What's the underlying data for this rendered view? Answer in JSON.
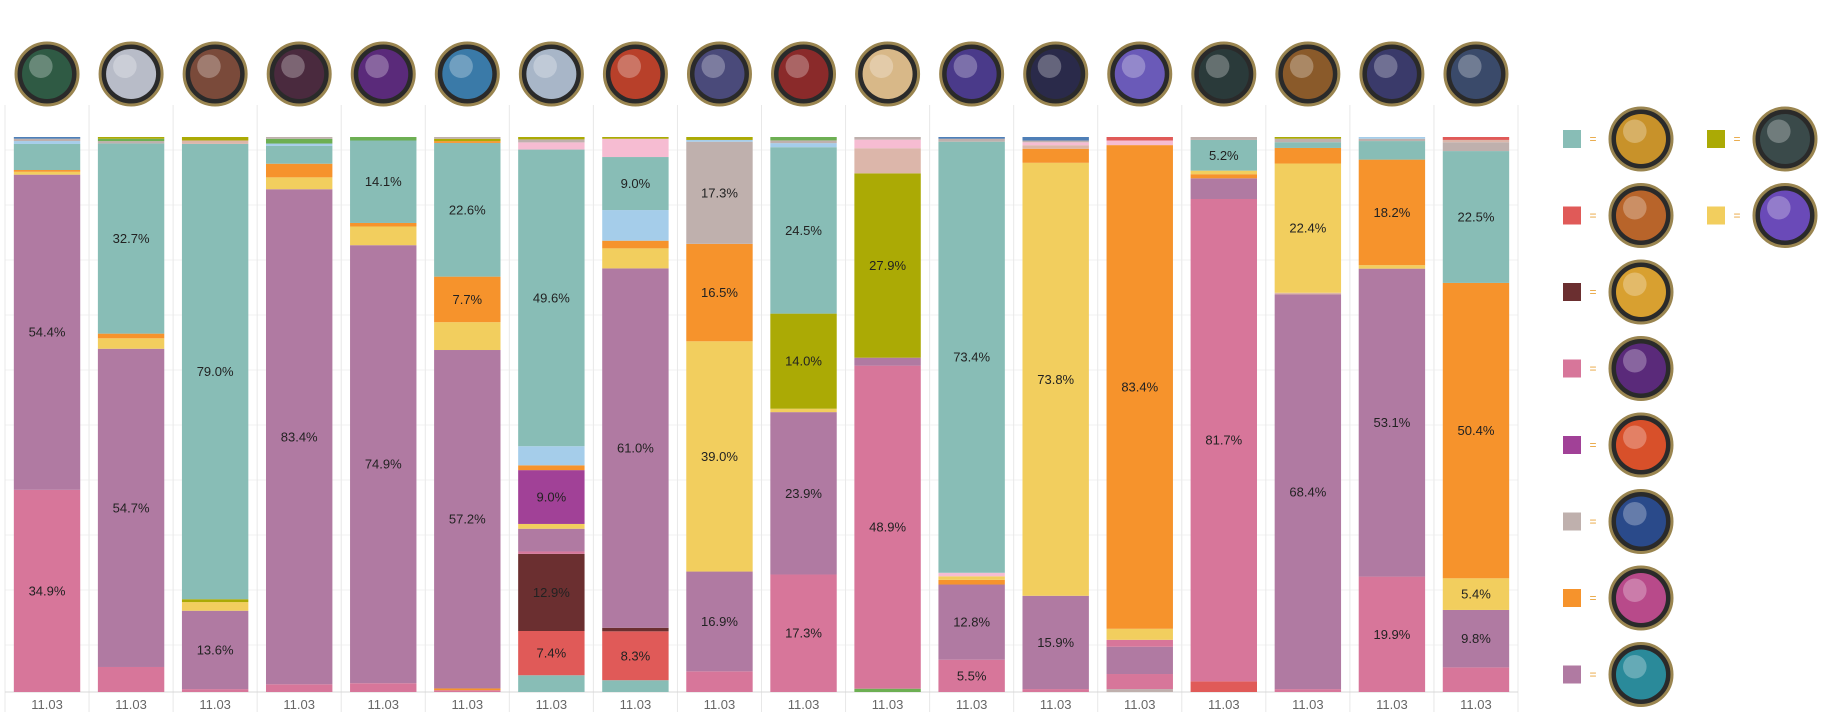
{
  "colors": {
    "teal": "#88bdb6",
    "red": "#e05a58",
    "maroon": "#6b2f30",
    "pink": "#d7769a",
    "magenta": "#a14197",
    "greige": "#bfb0ad",
    "orange": "#f6932c",
    "mauve": "#b07aa2",
    "olive": "#abaa05",
    "yellow": "#f2ce5e",
    "lightblue": "#a5cdea",
    "lightpink": "#f6bcd2",
    "tan": "#dcb6aa",
    "green": "#6daf53",
    "steelblue": "#4f7fb7"
  },
  "legend": [
    {
      "color": "teal",
      "icon": "gold-armored-champion-icon"
    },
    {
      "color": "red",
      "icon": "fiery-emblem-icon"
    },
    {
      "color": "maroon",
      "icon": "sun-medallion-icon"
    },
    {
      "color": "pink",
      "icon": "purple-orb-icon"
    },
    {
      "color": "magenta",
      "icon": "red-burst-icon"
    },
    {
      "color": "greige",
      "icon": "blue-crest-icon"
    },
    {
      "color": "orange",
      "icon": "pink-champion-icon"
    },
    {
      "color": "mauve",
      "icon": "cyan-champion-icon"
    },
    {
      "color": "olive",
      "icon": "dark-knight-icon"
    },
    {
      "color": "yellow",
      "icon": "purple-swirl-icon"
    }
  ],
  "legend_eq": "=",
  "chart_data": {
    "type": "bar",
    "stacked": true,
    "categories": [
      "11.03",
      "11.03",
      "11.03",
      "11.03",
      "11.03",
      "11.03",
      "11.03",
      "11.03",
      "11.03",
      "11.03",
      "11.03",
      "11.03",
      "11.03",
      "11.03",
      "11.03",
      "11.03",
      "11.03",
      "11.03"
    ],
    "champion_icons": [
      "akali-icon",
      "diana-icon",
      "champion-icon-3",
      "champion-icon-4",
      "champion-icon-5",
      "fizz-icon",
      "champion-icon-7",
      "gragas-icon",
      "champion-icon-9",
      "katarina-icon",
      "champion-icon-11",
      "champion-icon-12",
      "leblanc-icon",
      "lux-icon",
      "champion-icon-15",
      "qiyana-icon",
      "champion-icon-17",
      "champion-icon-18"
    ],
    "bars": [
      {
        "scale": 1.0,
        "segments": [
          {
            "c": "pink",
            "v": 34.9,
            "label": "34.9%"
          },
          {
            "c": "mauve",
            "v": 54.4,
            "label": "54.4%"
          },
          {
            "c": "yellow",
            "v": 0.5
          },
          {
            "c": "orange",
            "v": 0.3
          },
          {
            "c": "teal",
            "v": 4.5
          },
          {
            "c": "lightblue",
            "v": 0.5
          },
          {
            "c": "greige",
            "v": 0.4
          },
          {
            "c": "steelblue",
            "v": 0.3
          }
        ]
      },
      {
        "scale": 1.0,
        "segments": [
          {
            "c": "pink",
            "v": 4.3
          },
          {
            "c": "mauve",
            "v": 54.7,
            "label": "54.7%"
          },
          {
            "c": "yellow",
            "v": 1.8
          },
          {
            "c": "orange",
            "v": 0.8
          },
          {
            "c": "teal",
            "v": 32.7,
            "label": "32.7%"
          },
          {
            "c": "greige",
            "v": 0.4
          },
          {
            "c": "green",
            "v": 0.4
          },
          {
            "c": "olive",
            "v": 0.3
          }
        ]
      },
      {
        "scale": 1.0,
        "segments": [
          {
            "c": "pink",
            "v": 0.5
          },
          {
            "c": "mauve",
            "v": 13.6,
            "label": "13.6%"
          },
          {
            "c": "yellow",
            "v": 1.5
          },
          {
            "c": "olive",
            "v": 0.5
          },
          {
            "c": "teal",
            "v": 79.0,
            "label": "79.0%"
          },
          {
            "c": "tan",
            "v": 0.6
          },
          {
            "c": "olive",
            "v": 0.6
          }
        ]
      },
      {
        "scale": 1.0,
        "segments": [
          {
            "c": "pink",
            "v": 1.3
          },
          {
            "c": "mauve",
            "v": 83.4,
            "label": "83.4%"
          },
          {
            "c": "yellow",
            "v": 2.0
          },
          {
            "c": "orange",
            "v": 2.3
          },
          {
            "c": "teal",
            "v": 3.0
          },
          {
            "c": "lightblue",
            "v": 0.4
          },
          {
            "c": "green",
            "v": 0.8
          },
          {
            "c": "greige",
            "v": 0.3
          }
        ]
      },
      {
        "scale": 1.0,
        "segments": [
          {
            "c": "pink",
            "v": 1.5
          },
          {
            "c": "mauve",
            "v": 74.9,
            "label": "74.9%"
          },
          {
            "c": "yellow",
            "v": 3.2
          },
          {
            "c": "orange",
            "v": 0.6
          },
          {
            "c": "teal",
            "v": 14.1,
            "label": "14.1%"
          },
          {
            "c": "green",
            "v": 0.6
          }
        ]
      },
      {
        "scale": 1.0,
        "segments": [
          {
            "c": "pink",
            "v": 0.3
          },
          {
            "c": "orange",
            "v": 0.3
          },
          {
            "c": "mauve",
            "v": 57.2,
            "label": "57.2%"
          },
          {
            "c": "yellow",
            "v": 4.7
          },
          {
            "c": "orange",
            "v": 7.7,
            "label": "7.7%"
          },
          {
            "c": "teal",
            "v": 22.6,
            "label": "22.6%"
          },
          {
            "c": "orange",
            "v": 0.3
          },
          {
            "c": "olive",
            "v": 0.4
          },
          {
            "c": "greige",
            "v": 0.3
          }
        ]
      },
      {
        "scale": 1.0,
        "segments": [
          {
            "c": "teal",
            "v": 2.8
          },
          {
            "c": "red",
            "v": 7.4,
            "label": "7.4%"
          },
          {
            "c": "maroon",
            "v": 12.9,
            "label": "12.9%"
          },
          {
            "c": "pink",
            "v": 0.4
          },
          {
            "c": "mauve",
            "v": 3.8
          },
          {
            "c": "yellow",
            "v": 0.8
          },
          {
            "c": "magenta",
            "v": 9.0,
            "label": "9.0%"
          },
          {
            "c": "orange",
            "v": 0.8
          },
          {
            "c": "lightblue",
            "v": 3.2
          },
          {
            "c": "teal",
            "v": 49.6,
            "label": "49.6%"
          },
          {
            "c": "lightpink",
            "v": 1.2
          },
          {
            "c": "greige",
            "v": 0.5
          },
          {
            "c": "olive",
            "v": 0.4
          }
        ]
      },
      {
        "scale": 1.0,
        "segments": [
          {
            "c": "teal",
            "v": 2.0
          },
          {
            "c": "red",
            "v": 8.3,
            "label": "8.3%"
          },
          {
            "c": "maroon",
            "v": 0.6
          },
          {
            "c": "mauve",
            "v": 61.0,
            "label": "61.0%"
          },
          {
            "c": "yellow",
            "v": 3.4
          },
          {
            "c": "orange",
            "v": 1.3
          },
          {
            "c": "lightblue",
            "v": 5.2
          },
          {
            "c": "teal",
            "v": 9.0,
            "label": "9.0%"
          },
          {
            "c": "lightpink",
            "v": 3.1
          },
          {
            "c": "olive",
            "v": 0.3
          }
        ]
      },
      {
        "scale": 1.0,
        "segments": [
          {
            "c": "pink",
            "v": 3.5
          },
          {
            "c": "mauve",
            "v": 16.9,
            "label": "16.9%"
          },
          {
            "c": "yellow",
            "v": 39.0,
            "label": "39.0%"
          },
          {
            "c": "orange",
            "v": 16.5,
            "label": "16.5%"
          },
          {
            "c": "greige",
            "v": 17.3,
            "label": "17.3%"
          },
          {
            "c": "lightblue",
            "v": 0.3
          },
          {
            "c": "olive",
            "v": 0.5
          }
        ]
      },
      {
        "scale": 1.0,
        "segments": [
          {
            "c": "pink",
            "v": 17.3,
            "label": "17.3%"
          },
          {
            "c": "mauve",
            "v": 23.9,
            "label": "23.9%"
          },
          {
            "c": "yellow",
            "v": 0.5
          },
          {
            "c": "olive",
            "v": 14.0,
            "label": "14.0%"
          },
          {
            "c": "teal",
            "v": 24.5,
            "label": "24.5%"
          },
          {
            "c": "lightblue",
            "v": 0.6
          },
          {
            "c": "greige",
            "v": 0.4
          },
          {
            "c": "green",
            "v": 0.5
          }
        ]
      },
      {
        "scale": 1.0,
        "segments": [
          {
            "c": "green",
            "v": 0.5
          },
          {
            "c": "pink",
            "v": 48.9,
            "label": "48.9%"
          },
          {
            "c": "mauve",
            "v": 1.2
          },
          {
            "c": "olive",
            "v": 27.9,
            "label": "27.9%"
          },
          {
            "c": "tan",
            "v": 3.8
          },
          {
            "c": "lightpink",
            "v": 1.3
          },
          {
            "c": "greige",
            "v": 0.4
          }
        ]
      },
      {
        "scale": 1.0,
        "segments": [
          {
            "c": "pink",
            "v": 5.5,
            "label": "5.5%"
          },
          {
            "c": "mauve",
            "v": 12.8,
            "label": "12.8%"
          },
          {
            "c": "orange",
            "v": 0.8
          },
          {
            "c": "yellow",
            "v": 0.6
          },
          {
            "c": "lightpink",
            "v": 0.6
          },
          {
            "c": "teal",
            "v": 73.4,
            "label": "73.4%"
          },
          {
            "c": "greige",
            "v": 0.5
          },
          {
            "c": "steelblue",
            "v": 0.3
          }
        ]
      },
      {
        "scale": 1.0,
        "segments": [
          {
            "c": "pink",
            "v": 0.5
          },
          {
            "c": "mauve",
            "v": 15.9,
            "label": "15.9%"
          },
          {
            "c": "yellow",
            "v": 73.8,
            "label": "73.8%"
          },
          {
            "c": "orange",
            "v": 2.4
          },
          {
            "c": "tan",
            "v": 0.6
          },
          {
            "c": "lightpink",
            "v": 0.5
          },
          {
            "c": "greige",
            "v": 0.3
          },
          {
            "c": "steelblue",
            "v": 0.6
          }
        ]
      },
      {
        "scale": 1.0,
        "segments": [
          {
            "c": "greige",
            "v": 0.5
          },
          {
            "c": "pink",
            "v": 2.6
          },
          {
            "c": "mauve",
            "v": 4.7
          },
          {
            "c": "pink",
            "v": 1.2
          },
          {
            "c": "yellow",
            "v": 1.9
          },
          {
            "c": "orange",
            "v": 83.4,
            "label": "83.4%"
          },
          {
            "c": "lightpink",
            "v": 0.8
          },
          {
            "c": "red",
            "v": 0.6
          }
        ]
      },
      {
        "scale": 1.0,
        "segments": [
          {
            "c": "red",
            "v": 1.8
          },
          {
            "c": "pink",
            "v": 81.7,
            "label": "81.7%"
          },
          {
            "c": "mauve",
            "v": 3.5
          },
          {
            "c": "orange",
            "v": 0.7
          },
          {
            "c": "yellow",
            "v": 0.6
          },
          {
            "c": "teal",
            "v": 5.2,
            "label": "5.2%"
          },
          {
            "c": "greige",
            "v": 0.5
          }
        ]
      },
      {
        "scale": 1.0,
        "segments": [
          {
            "c": "pink",
            "v": 0.5
          },
          {
            "c": "mauve",
            "v": 68.4,
            "label": "68.4%"
          },
          {
            "c": "tan",
            "v": 0.3
          },
          {
            "c": "yellow",
            "v": 22.4,
            "label": "22.4%"
          },
          {
            "c": "orange",
            "v": 2.7
          },
          {
            "c": "teal",
            "v": 1.0
          },
          {
            "c": "greige",
            "v": 0.6
          },
          {
            "c": "olive",
            "v": 0.3
          }
        ]
      },
      {
        "scale": 1.0,
        "segments": [
          {
            "c": "pink",
            "v": 19.9,
            "label": "19.9%"
          },
          {
            "c": "mauve",
            "v": 53.1,
            "label": "53.1%"
          },
          {
            "c": "yellow",
            "v": 0.6
          },
          {
            "c": "orange",
            "v": 18.2,
            "label": "18.2%"
          },
          {
            "c": "teal",
            "v": 3.2
          },
          {
            "c": "greige",
            "v": 0.4
          },
          {
            "c": "lightblue",
            "v": 0.3
          }
        ]
      },
      {
        "scale": 1.0,
        "segments": [
          {
            "c": "pink",
            "v": 4.2
          },
          {
            "c": "mauve",
            "v": 9.8,
            "label": "9.8%"
          },
          {
            "c": "yellow",
            "v": 5.4,
            "label": "5.4%"
          },
          {
            "c": "orange",
            "v": 50.4,
            "label": "50.4%"
          },
          {
            "c": "teal",
            "v": 22.5,
            "label": "22.5%"
          },
          {
            "c": "greige",
            "v": 1.5
          },
          {
            "c": "tan",
            "v": 0.4
          },
          {
            "c": "red",
            "v": 0.5
          }
        ]
      }
    ],
    "title": "",
    "xlabel": "",
    "ylabel": "",
    "grid": "horizontal"
  }
}
